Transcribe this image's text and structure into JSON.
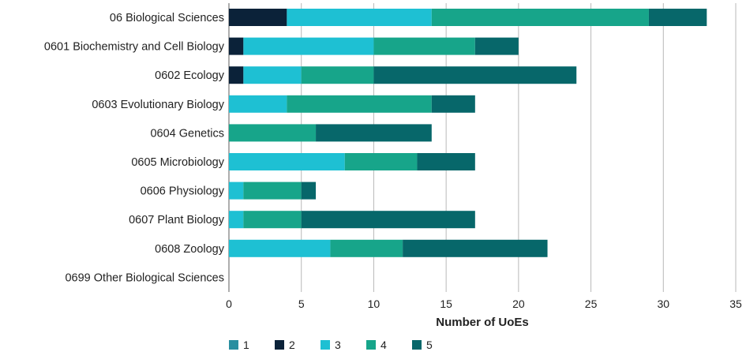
{
  "chart_data": {
    "type": "bar",
    "orientation": "horizontal",
    "stacked": true,
    "title": "",
    "xlabel": "Number of UoEs",
    "ylabel": "",
    "xlim": [
      0,
      35
    ],
    "xticks": [
      0,
      5,
      10,
      15,
      20,
      25,
      30,
      35
    ],
    "grid": "vertical",
    "legend_position": "bottom-left",
    "categories": [
      "06 Biological Sciences",
      "0601 Biochemistry and Cell Biology",
      "0602 Ecology",
      "0603 Evolutionary Biology",
      "0604 Genetics",
      "0605 Microbiology",
      "0606 Physiology",
      "0607 Plant Biology",
      "0608 Zoology",
      "0699 Other Biological Sciences"
    ],
    "series": [
      {
        "name": "1",
        "color": "#2a8fa0",
        "values": [
          0,
          0,
          0,
          0,
          0,
          0,
          0,
          0,
          0,
          0
        ]
      },
      {
        "name": "2",
        "color": "#0b2239",
        "values": [
          4,
          1,
          1,
          0,
          0,
          0,
          0,
          0,
          0,
          0
        ]
      },
      {
        "name": "3",
        "color": "#1ec0d3",
        "values": [
          10,
          9,
          4,
          4,
          0,
          8,
          1,
          1,
          7,
          0
        ]
      },
      {
        "name": "4",
        "color": "#17a58a",
        "values": [
          15,
          7,
          5,
          10,
          6,
          5,
          4,
          4,
          5,
          0
        ]
      },
      {
        "name": "5",
        "color": "#07676a",
        "values": [
          4,
          3,
          14,
          3,
          8,
          4,
          1,
          12,
          10,
          0
        ]
      }
    ]
  }
}
